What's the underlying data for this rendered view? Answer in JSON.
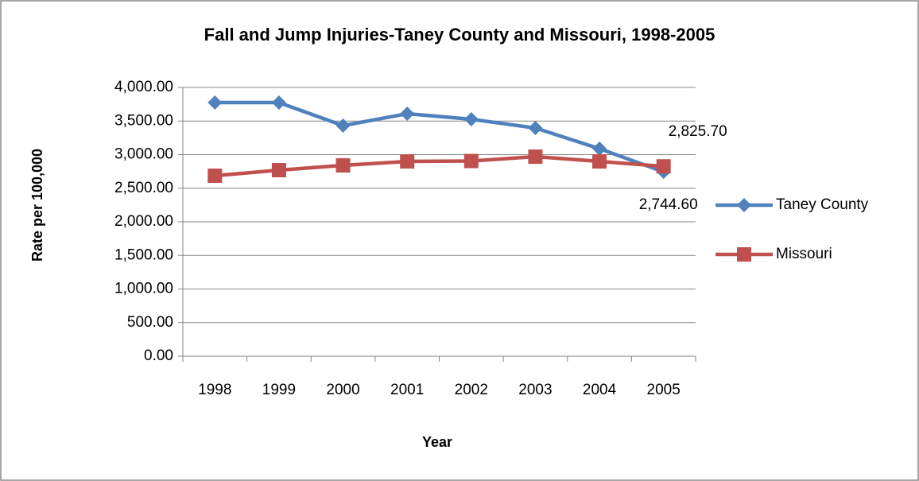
{
  "chart_data": {
    "type": "line",
    "title": "Fall and Jump Injuries-Taney County and Missouri, 1998-2005",
    "x_label": "Year",
    "y_label": "Rate per 100,000",
    "categories": [
      "1998",
      "1999",
      "2000",
      "2001",
      "2002",
      "2003",
      "2004",
      "2005"
    ],
    "series": [
      {
        "name": "Taney County",
        "color": "#4f81bd",
        "marker": "diamond",
        "values": [
          3775,
          3775,
          3432,
          3609,
          3527,
          3396,
          3089,
          2744.6
        ],
        "value_labels": [
          null,
          null,
          null,
          null,
          null,
          null,
          null,
          "2,744.60"
        ]
      },
      {
        "name": "Missouri",
        "color": "#c0504d",
        "marker": "square",
        "values": [
          2686,
          2769,
          2840,
          2899,
          2905,
          2970,
          2899,
          2825.7
        ],
        "value_labels": [
          null,
          null,
          null,
          null,
          null,
          null,
          null,
          "2,825.70"
        ]
      }
    ],
    "ylim": [
      0,
      4000
    ],
    "yticks": [
      {
        "value": 0,
        "label": "0.00"
      },
      {
        "value": 500,
        "label": "500.00"
      },
      {
        "value": 1000,
        "label": "1,000.00"
      },
      {
        "value": 1500,
        "label": "1,500.00"
      },
      {
        "value": 2000,
        "label": "2,000.00"
      },
      {
        "value": 2500,
        "label": "2,500.00"
      },
      {
        "value": 3000,
        "label": "3,000.00"
      },
      {
        "value": 3500,
        "label": "3,500.00"
      },
      {
        "value": 4000,
        "label": "4,000.00"
      }
    ],
    "grid": true,
    "legend": "right"
  }
}
